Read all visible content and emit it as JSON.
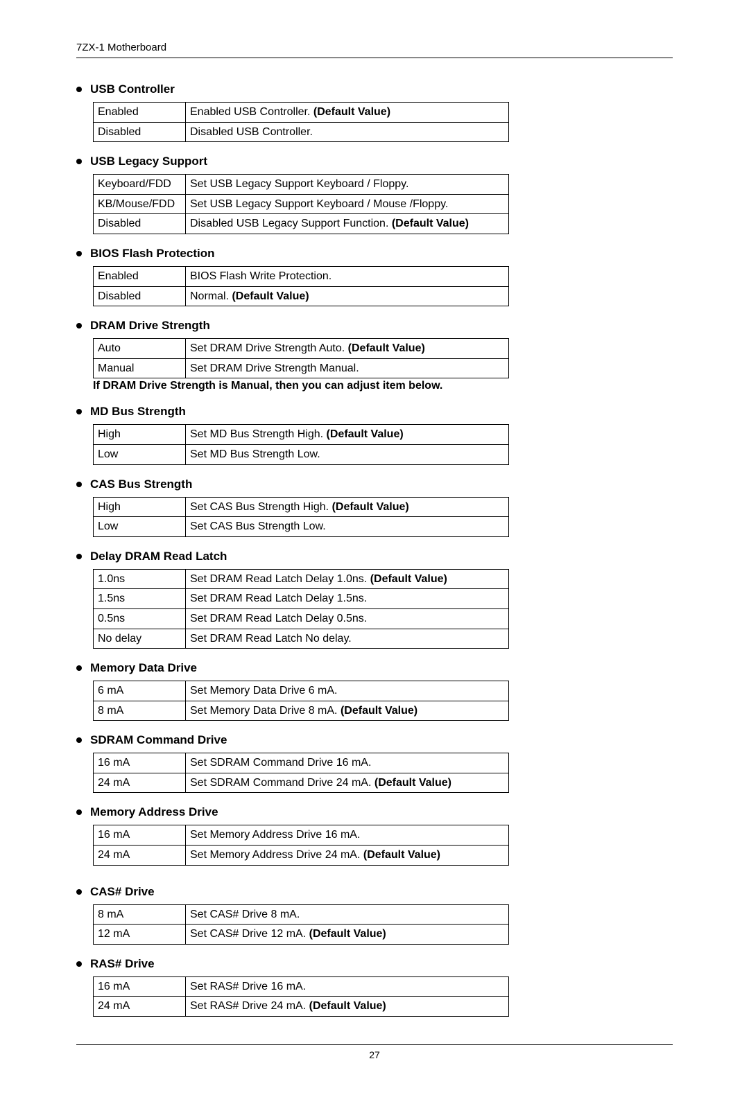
{
  "header": "7ZX-1 Motherboard",
  "page_number": "27",
  "sections": [
    {
      "title": "USB Controller",
      "rows": [
        {
          "opt": "Enabled",
          "desc": "Enabled USB Controller.",
          "bold": "(Default Value)"
        },
        {
          "opt": "Disabled",
          "desc": "Disabled USB Controller."
        }
      ]
    },
    {
      "title": "USB Legacy Support",
      "rows": [
        {
          "opt": "Keyboard/FDD",
          "desc": "Set USB Legacy Support Keyboard / Floppy."
        },
        {
          "opt": "KB/Mouse/FDD",
          "desc": "Set USB Legacy Support Keyboard / Mouse /Floppy."
        },
        {
          "opt": "Disabled",
          "desc": "Disabled USB Legacy Support Function.",
          "bold": "(Default Value)"
        }
      ]
    },
    {
      "title": "BIOS Flash Protection",
      "rows": [
        {
          "opt": "Enabled",
          "desc": "BIOS Flash Write Protection."
        },
        {
          "opt": "Disabled",
          "desc": "Normal.",
          "bold": "(Default Value)"
        }
      ]
    },
    {
      "title": "DRAM Drive Strength",
      "rows": [
        {
          "opt": "Auto",
          "desc": "Set DRAM Drive Strength Auto.",
          "bold": "(Default Value)"
        },
        {
          "opt": "Manual",
          "desc": "Set DRAM Drive Strength Manual."
        }
      ],
      "note": "If DRAM Drive Strength is Manual, then you can adjust item below."
    },
    {
      "title": "MD Bus Strength",
      "rows": [
        {
          "opt": "High",
          "desc": "Set MD Bus Strength High.",
          "bold": "(Default Value)"
        },
        {
          "opt": "Low",
          "desc": "Set MD Bus Strength Low."
        }
      ]
    },
    {
      "title": "CAS Bus Strength",
      "rows": [
        {
          "opt": "High",
          "desc": "Set CAS Bus Strength High.",
          "bold": "(Default Value)"
        },
        {
          "opt": "Low",
          "desc": "Set CAS Bus Strength Low."
        }
      ]
    },
    {
      "title": "Delay DRAM Read Latch",
      "rows": [
        {
          "opt": "1.0ns",
          "desc": "Set DRAM Read Latch Delay 1.0ns.",
          "bold": "(Default Value)"
        },
        {
          "opt": "1.5ns",
          "desc": "Set DRAM Read Latch Delay 1.5ns."
        },
        {
          "opt": "0.5ns",
          "desc": "Set DRAM Read Latch Delay 0.5ns."
        },
        {
          "opt": "No delay",
          "desc": "Set DRAM Read Latch No delay."
        }
      ]
    },
    {
      "title": "Memory Data Drive",
      "rows": [
        {
          "opt": "6 mA",
          "desc": "Set Memory Data Drive 6 mA."
        },
        {
          "opt": "8 mA",
          "desc": "Set Memory Data Drive 8 mA.",
          "bold": "(Default Value)"
        }
      ]
    },
    {
      "title": "SDRAM Command Drive",
      "rows": [
        {
          "opt": "16 mA",
          "desc": "Set SDRAM Command Drive 16 mA."
        },
        {
          "opt": "24 mA",
          "desc": "Set SDRAM Command Drive 24 mA.",
          "bold": "(Default Value)"
        }
      ]
    },
    {
      "title": "Memory Address Drive",
      "rows": [
        {
          "opt": "16 mA",
          "desc": "Set Memory Address Drive 16 mA."
        },
        {
          "opt": "24 mA",
          "desc": "Set Memory Address Drive 24 mA.",
          "bold": "(Default Value)"
        }
      ]
    },
    {
      "title": "CAS# Drive",
      "rows": [
        {
          "opt": "8 mA",
          "desc": "Set CAS# Drive 8 mA."
        },
        {
          "opt": "12 mA",
          "desc": "Set CAS# Drive 12 mA.",
          "bold": "(Default Value)"
        }
      ],
      "pre_space": true
    },
    {
      "title": "RAS# Drive",
      "rows": [
        {
          "opt": "16 mA",
          "desc": "Set RAS# Drive 16 mA."
        },
        {
          "opt": "24 mA",
          "desc": "Set RAS# Drive 24 mA.",
          "bold": "(Default Value)"
        }
      ]
    }
  ]
}
